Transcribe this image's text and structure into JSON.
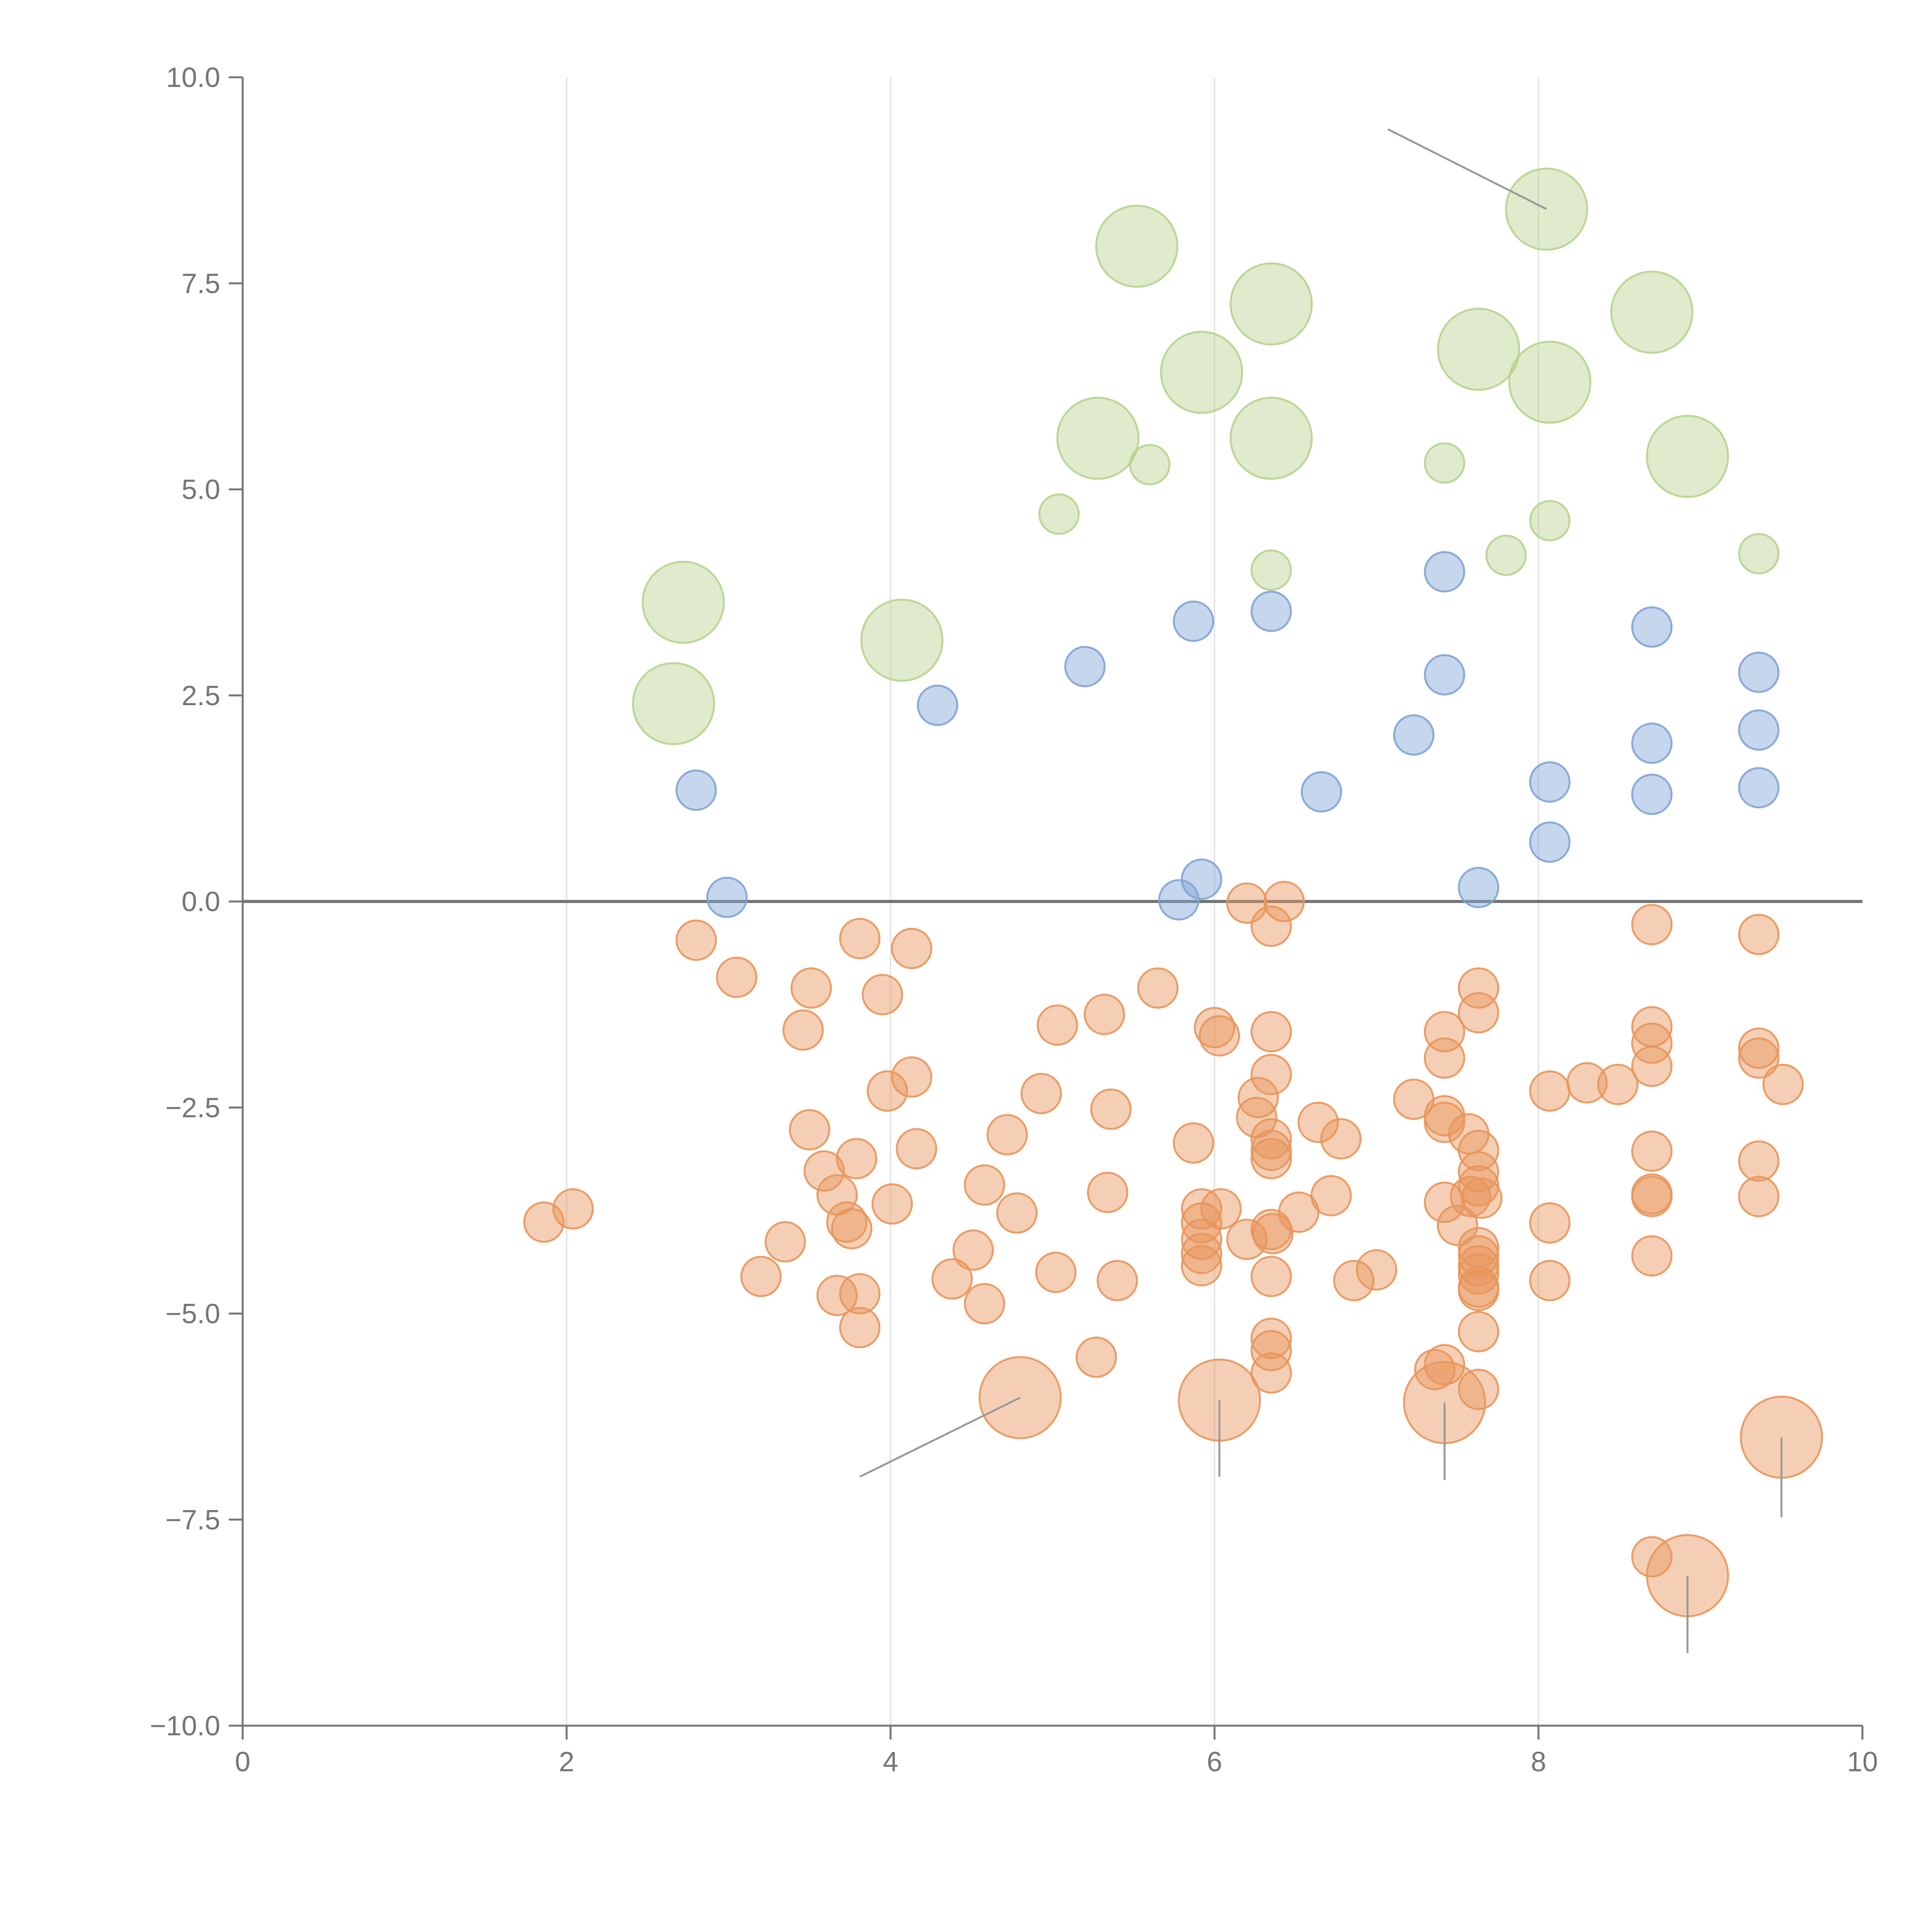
{
  "chart_data": {
    "type": "scatter",
    "title": "",
    "xlabel": "",
    "ylabel": "",
    "xlim": [
      0,
      10
    ],
    "ylim": [
      -10,
      10
    ],
    "x_ticks": [
      0,
      2,
      4,
      6,
      8,
      10
    ],
    "y_ticks": [
      -10.0,
      -7.5,
      -5.0,
      -2.5,
      0.0,
      2.5,
      5.0,
      7.5,
      10.0
    ],
    "grid": "vertical",
    "zero_line": true,
    "legend": "none",
    "colors": {
      "orange": "#e8955a",
      "blue": "#7fa3d6",
      "green": "#b7d38d"
    },
    "series": [
      {
        "color_key": "green",
        "points": [
          [
            8.05,
            8.4,
            2
          ],
          [
            5.52,
            7.95,
            2
          ],
          [
            6.35,
            7.25,
            2
          ],
          [
            8.7,
            7.15,
            2
          ],
          [
            7.63,
            6.7,
            2
          ],
          [
            5.92,
            6.42,
            2
          ],
          [
            8.07,
            6.3,
            2
          ],
          [
            5.28,
            5.62,
            2
          ],
          [
            6.35,
            5.62,
            2
          ],
          [
            8.92,
            5.4,
            2
          ],
          [
            2.72,
            3.63,
            2
          ],
          [
            4.07,
            3.17,
            2
          ],
          [
            2.66,
            2.4,
            2
          ],
          [
            5.6,
            5.3,
            1
          ],
          [
            7.42,
            5.32,
            1
          ],
          [
            5.04,
            4.7,
            1
          ],
          [
            8.07,
            4.62,
            1
          ],
          [
            6.35,
            4.02,
            1
          ],
          [
            7.8,
            4.2,
            1
          ],
          [
            9.36,
            4.22,
            1
          ]
        ]
      },
      {
        "color_key": "blue",
        "points": [
          [
            7.42,
            4.0,
            1
          ],
          [
            5.87,
            3.4,
            1
          ],
          [
            6.35,
            3.52,
            1
          ],
          [
            8.7,
            3.33,
            1
          ],
          [
            5.2,
            2.85,
            1
          ],
          [
            4.29,
            2.38,
            1
          ],
          [
            7.42,
            2.75,
            1
          ],
          [
            9.36,
            2.78,
            1
          ],
          [
            7.23,
            2.02,
            1
          ],
          [
            8.7,
            1.92,
            1
          ],
          [
            9.36,
            2.08,
            1
          ],
          [
            2.8,
            1.35,
            1
          ],
          [
            6.66,
            1.33,
            1
          ],
          [
            8.07,
            1.45,
            1
          ],
          [
            8.7,
            1.3,
            1
          ],
          [
            9.36,
            1.38,
            1
          ],
          [
            8.07,
            0.72,
            1
          ],
          [
            2.99,
            0.05,
            1
          ],
          [
            5.92,
            0.27,
            1
          ],
          [
            5.78,
            0.02,
            1
          ],
          [
            7.63,
            0.17,
            1
          ]
        ]
      },
      {
        "color_key": "orange",
        "points": [
          [
            6.2,
            -0.02,
            1
          ],
          [
            6.43,
            0.0,
            1
          ],
          [
            6.35,
            -0.3,
            1
          ],
          [
            8.7,
            -0.28,
            1
          ],
          [
            9.36,
            -0.4,
            1
          ],
          [
            2.8,
            -0.47,
            1
          ],
          [
            3.81,
            -0.45,
            1
          ],
          [
            4.13,
            -0.57,
            1
          ],
          [
            3.05,
            -0.92,
            1
          ],
          [
            3.51,
            -1.05,
            1
          ],
          [
            3.95,
            -1.13,
            1
          ],
          [
            5.65,
            -1.05,
            1
          ],
          [
            7.63,
            -1.05,
            1
          ],
          [
            3.46,
            -1.56,
            1
          ],
          [
            5.32,
            -1.37,
            1
          ],
          [
            5.03,
            -1.5,
            1
          ],
          [
            6.0,
            -1.53,
            1
          ],
          [
            6.03,
            -1.63,
            1
          ],
          [
            6.35,
            -1.58,
            1
          ],
          [
            7.42,
            -1.58,
            1
          ],
          [
            7.63,
            -1.35,
            1
          ],
          [
            8.7,
            -1.52,
            1
          ],
          [
            8.7,
            -1.72,
            1
          ],
          [
            9.36,
            -1.78,
            1
          ],
          [
            9.36,
            -1.9,
            1
          ],
          [
            7.42,
            -1.9,
            1
          ],
          [
            6.35,
            -2.1,
            1
          ],
          [
            8.7,
            -2.0,
            1
          ],
          [
            4.13,
            -2.13,
            1
          ],
          [
            3.98,
            -2.3,
            1
          ],
          [
            4.93,
            -2.33,
            1
          ],
          [
            6.27,
            -2.38,
            1
          ],
          [
            7.23,
            -2.4,
            1
          ],
          [
            8.07,
            -2.3,
            1
          ],
          [
            8.3,
            -2.2,
            1
          ],
          [
            8.49,
            -2.22,
            1
          ],
          [
            9.51,
            -2.22,
            1
          ],
          [
            5.36,
            -2.52,
            1
          ],
          [
            6.26,
            -2.62,
            1
          ],
          [
            6.64,
            -2.68,
            1
          ],
          [
            7.42,
            -2.6,
            1
          ],
          [
            7.42,
            -2.68,
            1
          ],
          [
            3.5,
            -2.77,
            1
          ],
          [
            4.72,
            -2.83,
            1
          ],
          [
            5.87,
            -2.93,
            1
          ],
          [
            6.35,
            -2.88,
            1
          ],
          [
            6.78,
            -2.88,
            1
          ],
          [
            7.57,
            -2.82,
            1
          ],
          [
            4.16,
            -3.0,
            1
          ],
          [
            6.35,
            -3.02,
            1
          ],
          [
            6.35,
            -3.12,
            1
          ],
          [
            7.63,
            -3.02,
            1
          ],
          [
            8.7,
            -3.03,
            1
          ],
          [
            3.79,
            -3.12,
            1
          ],
          [
            3.59,
            -3.27,
            1
          ],
          [
            7.63,
            -3.28,
            1
          ],
          [
            7.63,
            -3.45,
            1
          ],
          [
            9.36,
            -3.15,
            1
          ],
          [
            3.67,
            -3.56,
            1
          ],
          [
            4.58,
            -3.44,
            1
          ],
          [
            5.34,
            -3.53,
            1
          ],
          [
            6.72,
            -3.57,
            1
          ],
          [
            7.58,
            -3.58,
            1
          ],
          [
            7.65,
            -3.6,
            1
          ],
          [
            8.7,
            -3.55,
            1
          ],
          [
            8.7,
            -3.58,
            1
          ],
          [
            9.36,
            -3.58,
            1
          ],
          [
            1.86,
            -3.89,
            1
          ],
          [
            2.04,
            -3.73,
            1
          ],
          [
            4.01,
            -3.67,
            1
          ],
          [
            4.78,
            -3.78,
            1
          ],
          [
            5.92,
            -3.73,
            1
          ],
          [
            6.04,
            -3.73,
            1
          ],
          [
            6.52,
            -3.77,
            1
          ],
          [
            7.42,
            -3.65,
            1
          ],
          [
            3.73,
            -3.89,
            1
          ],
          [
            3.76,
            -3.97,
            1
          ],
          [
            5.92,
            -3.9,
            1
          ],
          [
            6.35,
            -3.98,
            1
          ],
          [
            6.36,
            -4.03,
            1
          ],
          [
            7.5,
            -3.93,
            1
          ],
          [
            8.07,
            -3.9,
            1
          ],
          [
            3.35,
            -4.13,
            1
          ],
          [
            4.51,
            -4.23,
            1
          ],
          [
            5.92,
            -4.1,
            1
          ],
          [
            6.2,
            -4.1,
            1
          ],
          [
            5.92,
            -4.27,
            1
          ],
          [
            7.63,
            -4.2,
            1
          ],
          [
            7.63,
            -4.3,
            1
          ],
          [
            8.7,
            -4.3,
            1
          ],
          [
            3.2,
            -4.55,
            1
          ],
          [
            4.38,
            -4.58,
            1
          ],
          [
            5.02,
            -4.5,
            1
          ],
          [
            5.4,
            -4.6,
            1
          ],
          [
            5.92,
            -4.42,
            1
          ],
          [
            6.35,
            -4.55,
            1
          ],
          [
            6.86,
            -4.6,
            1
          ],
          [
            7.0,
            -4.47,
            1
          ],
          [
            7.63,
            -4.42,
            1
          ],
          [
            7.63,
            -4.52,
            1
          ],
          [
            8.07,
            -4.6,
            1
          ],
          [
            3.67,
            -4.78,
            1
          ],
          [
            3.81,
            -4.76,
            1
          ],
          [
            7.63,
            -4.68,
            1
          ],
          [
            7.63,
            -4.72,
            1
          ],
          [
            4.58,
            -4.88,
            1
          ],
          [
            3.81,
            -5.17,
            1
          ],
          [
            7.63,
            -5.22,
            1
          ],
          [
            6.35,
            -5.3,
            1
          ],
          [
            6.35,
            -5.45,
            1
          ],
          [
            5.27,
            -5.53,
            1
          ],
          [
            6.35,
            -5.72,
            1
          ],
          [
            7.36,
            -5.68,
            1
          ],
          [
            7.42,
            -5.62,
            1
          ],
          [
            7.63,
            -5.92,
            1
          ],
          [
            8.7,
            -7.95,
            1
          ],
          [
            4.8,
            -6.02,
            2
          ],
          [
            6.03,
            -6.05,
            2
          ],
          [
            7.42,
            -6.08,
            2
          ],
          [
            9.5,
            -6.5,
            2
          ],
          [
            8.92,
            -8.18,
            2
          ]
        ]
      }
    ]
  },
  "leader_lines": [
    [
      [
        7.07,
        9.37
      ],
      [
        8.05,
        8.4
      ]
    ],
    [
      [
        4.8,
        -6.02
      ],
      [
        3.81,
        -6.98
      ]
    ],
    [
      [
        6.03,
        -6.05
      ],
      [
        6.03,
        -6.98
      ]
    ],
    [
      [
        7.42,
        -6.08
      ],
      [
        7.42,
        -7.02
      ]
    ],
    [
      [
        9.5,
        -6.5
      ],
      [
        9.5,
        -7.47
      ]
    ],
    [
      [
        8.92,
        -8.18
      ],
      [
        8.92,
        -9.12
      ]
    ]
  ]
}
